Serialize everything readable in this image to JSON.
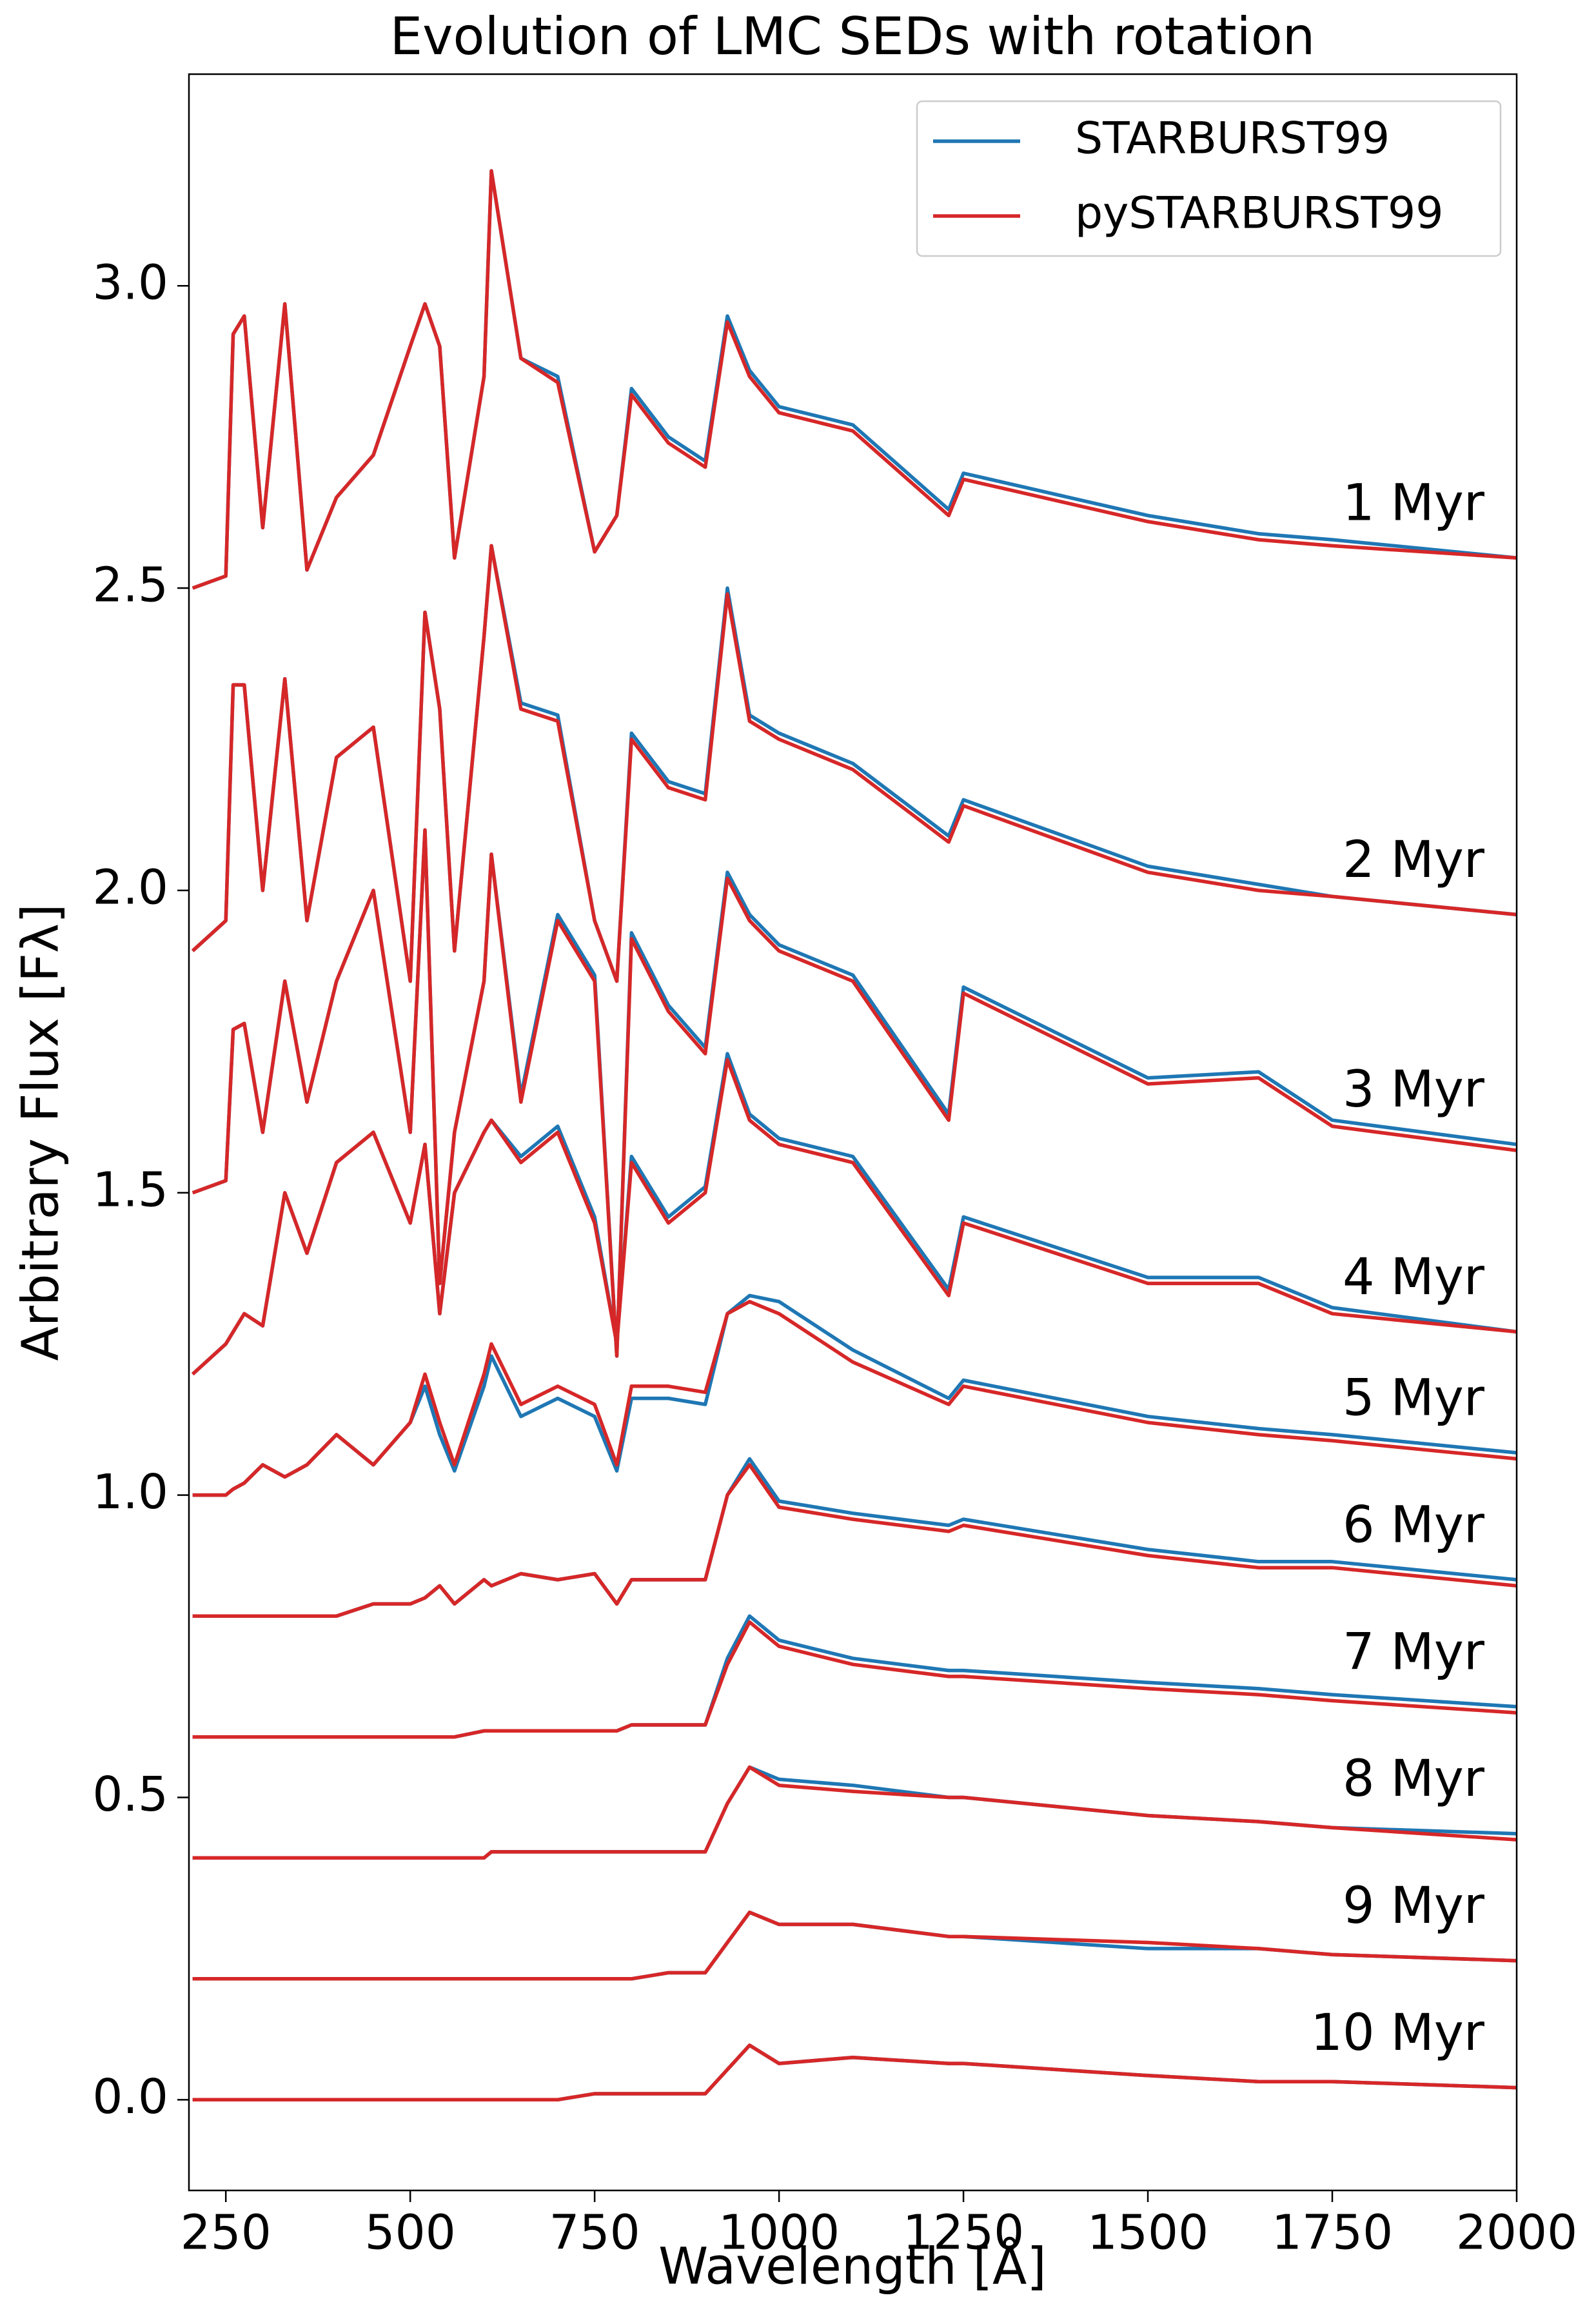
{
  "chart_data": {
    "type": "line",
    "title": "Evolution of LMC SEDs with rotation",
    "x_label": "Wavelength [Å]",
    "y_label": "Arbitrary Flux [Fλ]",
    "x": [
      205,
      250,
      260,
      275,
      300,
      330,
      360,
      400,
      450,
      500,
      520,
      540,
      560,
      600,
      610,
      650,
      700,
      750,
      780,
      800,
      850,
      900,
      930,
      960,
      1000,
      1100,
      1230,
      1250,
      1500,
      1650,
      1750,
      2000
    ],
    "xlim": [
      200,
      2000
    ],
    "xticks": [
      250,
      500,
      750,
      1000,
      1250,
      1500,
      1750,
      2000
    ],
    "ylim": [
      -0.15,
      3.35
    ],
    "yticks": [
      {
        "value": 0,
        "label": "0.0"
      },
      0.5,
      {
        "value": 1,
        "label": "1.0"
      },
      1.5,
      {
        "value": 2,
        "label": "2.0"
      },
      2.5,
      {
        "value": 3,
        "label": "3.0"
      }
    ],
    "legend": "upper right",
    "line_labels": [
      "1 Myr",
      "2 Myr",
      "3 Myr",
      "4 Myr",
      "5 Myr",
      "6 Myr",
      "7 Myr",
      "8 Myr",
      "9 Myr",
      "10 Myr"
    ],
    "series": [
      {
        "name": "STARBURST99",
        "color": "#1f77b4",
        "lines": [
          [
            2.5,
            2.52,
            2.92,
            2.95,
            2.6,
            2.97,
            2.53,
            2.65,
            2.72,
            2.9,
            2.97,
            2.9,
            2.55,
            2.85,
            3.19,
            2.88,
            2.85,
            2.56,
            2.62,
            2.83,
            2.75,
            2.71,
            2.95,
            2.86,
            2.8,
            2.77,
            2.63,
            2.69,
            2.62,
            2.59,
            2.58,
            2.55
          ],
          [
            1.9,
            1.95,
            2.34,
            2.34,
            2.0,
            2.35,
            1.95,
            2.22,
            2.27,
            1.85,
            2.46,
            2.3,
            1.9,
            2.42,
            2.57,
            2.31,
            2.29,
            1.95,
            1.85,
            2.26,
            2.18,
            2.16,
            2.5,
            2.29,
            2.26,
            2.21,
            2.09,
            2.15,
            2.04,
            2.01,
            1.99,
            1.96
          ],
          [
            1.5,
            1.52,
            1.77,
            1.78,
            1.6,
            1.85,
            1.65,
            1.85,
            2.0,
            1.6,
            2.1,
            1.35,
            1.6,
            1.85,
            2.06,
            1.66,
            1.96,
            1.86,
            1.23,
            1.93,
            1.81,
            1.74,
            2.03,
            1.96,
            1.91,
            1.86,
            1.63,
            1.84,
            1.69,
            1.7,
            1.62,
            1.58
          ],
          [
            1.2,
            1.25,
            1.27,
            1.3,
            1.28,
            1.5,
            1.4,
            1.55,
            1.6,
            1.45,
            1.58,
            1.3,
            1.5,
            1.6,
            1.62,
            1.56,
            1.61,
            1.46,
            1.25,
            1.56,
            1.46,
            1.51,
            1.73,
            1.63,
            1.59,
            1.56,
            1.34,
            1.46,
            1.36,
            1.36,
            1.31,
            1.27
          ],
          [
            1.0,
            1.0,
            1.01,
            1.02,
            1.05,
            1.03,
            1.05,
            1.1,
            1.05,
            1.12,
            1.18,
            1.1,
            1.04,
            1.18,
            1.23,
            1.13,
            1.16,
            1.13,
            1.04,
            1.16,
            1.16,
            1.15,
            1.3,
            1.33,
            1.32,
            1.24,
            1.16,
            1.19,
            1.13,
            1.11,
            1.1,
            1.07
          ],
          [
            0.8,
            0.8,
            0.8,
            0.8,
            0.8,
            0.8,
            0.8,
            0.8,
            0.82,
            0.82,
            0.83,
            0.85,
            0.82,
            0.86,
            0.85,
            0.87,
            0.86,
            0.87,
            0.82,
            0.86,
            0.86,
            0.86,
            1.0,
            1.06,
            0.99,
            0.97,
            0.95,
            0.96,
            0.91,
            0.89,
            0.89,
            0.86
          ],
          [
            0.6,
            0.6,
            0.6,
            0.6,
            0.6,
            0.6,
            0.6,
            0.6,
            0.6,
            0.6,
            0.6,
            0.6,
            0.6,
            0.61,
            0.61,
            0.61,
            0.61,
            0.61,
            0.61,
            0.62,
            0.62,
            0.62,
            0.73,
            0.8,
            0.76,
            0.73,
            0.71,
            0.71,
            0.69,
            0.68,
            0.67,
            0.65
          ],
          [
            0.4,
            0.4,
            0.4,
            0.4,
            0.4,
            0.4,
            0.4,
            0.4,
            0.4,
            0.4,
            0.4,
            0.4,
            0.4,
            0.4,
            0.41,
            0.41,
            0.41,
            0.41,
            0.41,
            0.41,
            0.41,
            0.41,
            0.49,
            0.55,
            0.53,
            0.52,
            0.5,
            0.5,
            0.47,
            0.46,
            0.45,
            0.44
          ],
          [
            0.2,
            0.2,
            0.2,
            0.2,
            0.2,
            0.2,
            0.2,
            0.2,
            0.2,
            0.2,
            0.2,
            0.2,
            0.2,
            0.2,
            0.2,
            0.2,
            0.2,
            0.2,
            0.2,
            0.2,
            0.21,
            0.21,
            0.26,
            0.31,
            0.29,
            0.29,
            0.27,
            0.27,
            0.25,
            0.25,
            0.24,
            0.23
          ],
          [
            0.0,
            0.0,
            0.0,
            0.0,
            0.0,
            0.0,
            0.0,
            0.0,
            0.0,
            0.0,
            0.0,
            0.0,
            0.0,
            0.0,
            0.0,
            0.0,
            0.0,
            0.01,
            0.01,
            0.01,
            0.01,
            0.01,
            0.05,
            0.09,
            0.06,
            0.07,
            0.06,
            0.06,
            0.04,
            0.03,
            0.03,
            0.02
          ]
        ]
      },
      {
        "name": "pySTARBURST99",
        "color": "#d62728",
        "lines": [
          [
            2.5,
            2.52,
            2.92,
            2.95,
            2.6,
            2.97,
            2.53,
            2.65,
            2.72,
            2.9,
            2.97,
            2.9,
            2.55,
            2.85,
            3.19,
            2.88,
            2.84,
            2.56,
            2.62,
            2.82,
            2.74,
            2.7,
            2.94,
            2.85,
            2.79,
            2.76,
            2.62,
            2.68,
            2.61,
            2.58,
            2.57,
            2.55
          ],
          [
            1.9,
            1.95,
            2.34,
            2.34,
            2.0,
            2.35,
            1.95,
            2.22,
            2.27,
            1.85,
            2.46,
            2.3,
            1.9,
            2.42,
            2.57,
            2.3,
            2.28,
            1.95,
            1.85,
            2.25,
            2.17,
            2.15,
            2.49,
            2.28,
            2.25,
            2.2,
            2.08,
            2.14,
            2.03,
            2.0,
            1.99,
            1.96
          ],
          [
            1.5,
            1.52,
            1.77,
            1.78,
            1.6,
            1.85,
            1.65,
            1.85,
            2.0,
            1.6,
            2.1,
            1.35,
            1.6,
            1.85,
            2.06,
            1.65,
            1.95,
            1.85,
            1.23,
            1.92,
            1.8,
            1.73,
            2.02,
            1.95,
            1.9,
            1.85,
            1.62,
            1.83,
            1.68,
            1.69,
            1.61,
            1.57
          ],
          [
            1.2,
            1.25,
            1.27,
            1.3,
            1.28,
            1.5,
            1.4,
            1.55,
            1.6,
            1.45,
            1.58,
            1.3,
            1.5,
            1.6,
            1.62,
            1.55,
            1.6,
            1.45,
            1.25,
            1.55,
            1.45,
            1.5,
            1.72,
            1.62,
            1.58,
            1.55,
            1.33,
            1.45,
            1.35,
            1.35,
            1.3,
            1.27
          ],
          [
            1.0,
            1.0,
            1.01,
            1.02,
            1.05,
            1.03,
            1.05,
            1.1,
            1.05,
            1.12,
            1.2,
            1.12,
            1.05,
            1.2,
            1.25,
            1.15,
            1.18,
            1.15,
            1.05,
            1.18,
            1.18,
            1.17,
            1.3,
            1.32,
            1.3,
            1.22,
            1.15,
            1.18,
            1.12,
            1.1,
            1.09,
            1.06
          ],
          [
            0.8,
            0.8,
            0.8,
            0.8,
            0.8,
            0.8,
            0.8,
            0.8,
            0.82,
            0.82,
            0.83,
            0.85,
            0.82,
            0.86,
            0.85,
            0.87,
            0.86,
            0.87,
            0.82,
            0.86,
            0.86,
            0.86,
            1.0,
            1.05,
            0.98,
            0.96,
            0.94,
            0.95,
            0.9,
            0.88,
            0.88,
            0.85
          ],
          [
            0.6,
            0.6,
            0.6,
            0.6,
            0.6,
            0.6,
            0.6,
            0.6,
            0.6,
            0.6,
            0.6,
            0.6,
            0.6,
            0.61,
            0.61,
            0.61,
            0.61,
            0.61,
            0.61,
            0.62,
            0.62,
            0.62,
            0.72,
            0.79,
            0.75,
            0.72,
            0.7,
            0.7,
            0.68,
            0.67,
            0.66,
            0.64
          ],
          [
            0.4,
            0.4,
            0.4,
            0.4,
            0.4,
            0.4,
            0.4,
            0.4,
            0.4,
            0.4,
            0.4,
            0.4,
            0.4,
            0.4,
            0.41,
            0.41,
            0.41,
            0.41,
            0.41,
            0.41,
            0.41,
            0.41,
            0.49,
            0.55,
            0.52,
            0.51,
            0.5,
            0.5,
            0.47,
            0.46,
            0.45,
            0.43
          ],
          [
            0.2,
            0.2,
            0.2,
            0.2,
            0.2,
            0.2,
            0.2,
            0.2,
            0.2,
            0.2,
            0.2,
            0.2,
            0.2,
            0.2,
            0.2,
            0.2,
            0.2,
            0.2,
            0.2,
            0.2,
            0.21,
            0.21,
            0.26,
            0.31,
            0.29,
            0.29,
            0.27,
            0.27,
            0.26,
            0.25,
            0.24,
            0.23
          ],
          [
            0.0,
            0.0,
            0.0,
            0.0,
            0.0,
            0.0,
            0.0,
            0.0,
            0.0,
            0.0,
            0.0,
            0.0,
            0.0,
            0.0,
            0.0,
            0.0,
            0.0,
            0.01,
            0.01,
            0.01,
            0.01,
            0.01,
            0.05,
            0.09,
            0.06,
            0.07,
            0.06,
            0.06,
            0.04,
            0.03,
            0.03,
            0.02
          ]
        ]
      }
    ]
  }
}
